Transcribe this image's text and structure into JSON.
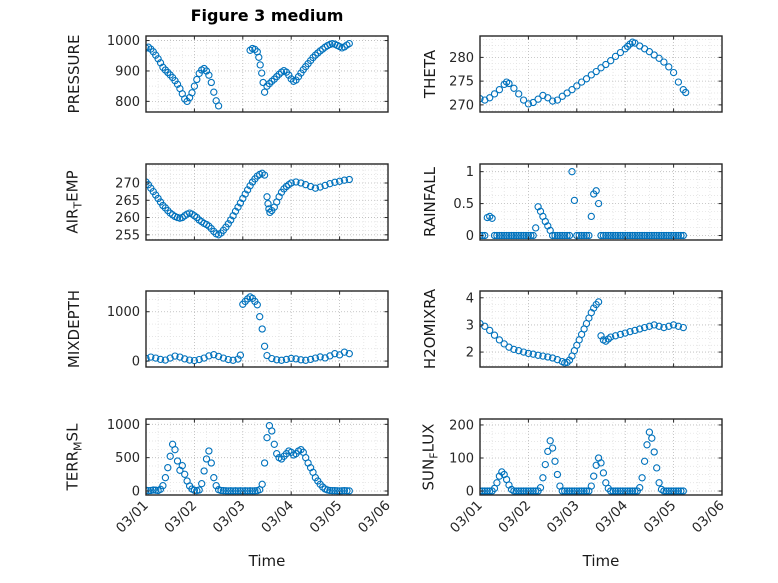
{
  "title": "Figure 3 medium",
  "xlabel": "Time",
  "x_tick_labels": [
    "03/01",
    "03/02",
    "03/03",
    "03/04",
    "03/05",
    "03/06"
  ],
  "colors": {
    "marker": "#0072BD",
    "axis": "#262626",
    "grid_major": "#b8b8b8",
    "grid_minor": "#dedede",
    "plot_bg": "#ffffff"
  },
  "axes": {
    "xlim": [
      0,
      5
    ],
    "xticks": [
      0,
      1,
      2,
      3,
      4,
      5
    ],
    "x_minor_step": 0.25
  },
  "chart_data": [
    {
      "type": "scatter",
      "name": "pressure",
      "row": 0,
      "col": 0,
      "ylabel": {
        "pre": "PRESSURE",
        "sub": "",
        "post": ""
      },
      "yticks": [
        800,
        900,
        1000
      ],
      "ylim": [
        765,
        1015
      ],
      "yminor": 25,
      "x": [
        0,
        0.05,
        0.1,
        0.15,
        0.2,
        0.25,
        0.3,
        0.35,
        0.4,
        0.45,
        0.5,
        0.55,
        0.6,
        0.65,
        0.7,
        0.75,
        0.8,
        0.85,
        0.9,
        0.95,
        1,
        1.05,
        1.1,
        1.15,
        1.2,
        1.25,
        1.3,
        1.35,
        1.4,
        1.45,
        1.5,
        2.15,
        2.2,
        2.25,
        2.3,
        2.33,
        2.36,
        2.39,
        2.42,
        2.45,
        2.5,
        2.55,
        2.6,
        2.65,
        2.7,
        2.75,
        2.8,
        2.85,
        2.9,
        2.95,
        3,
        3.05,
        3.1,
        3.15,
        3.2,
        3.25,
        3.3,
        3.35,
        3.4,
        3.45,
        3.5,
        3.55,
        3.6,
        3.65,
        3.7,
        3.75,
        3.8,
        3.85,
        3.9,
        3.95,
        4,
        4.05,
        4.1,
        4.15,
        4.2
      ],
      "y": [
        975,
        978,
        972,
        963,
        952,
        940,
        927,
        912,
        903,
        895,
        887,
        878,
        868,
        856,
        842,
        825,
        808,
        800,
        812,
        828,
        850,
        872,
        892,
        903,
        908,
        900,
        886,
        862,
        830,
        802,
        785,
        968,
        974,
        971,
        963,
        945,
        920,
        893,
        862,
        830,
        850,
        858,
        866,
        873,
        881,
        889,
        896,
        901,
        896,
        886,
        874,
        866,
        870,
        881,
        893,
        904,
        914,
        924,
        934,
        944,
        952,
        959,
        966,
        972,
        978,
        983,
        987,
        990,
        988,
        984,
        980,
        976,
        979,
        985,
        990
      ]
    },
    {
      "type": "scatter",
      "name": "theta",
      "row": 0,
      "col": 1,
      "ylabel": {
        "pre": "THETA",
        "sub": "",
        "post": ""
      },
      "yticks": [
        270,
        275,
        280
      ],
      "ylim": [
        268.5,
        284.5
      ],
      "yminor": 1.25,
      "x": [
        0,
        0.1,
        0.2,
        0.3,
        0.4,
        0.5,
        0.55,
        0.6,
        0.7,
        0.8,
        0.9,
        1,
        1.1,
        1.2,
        1.3,
        1.4,
        1.5,
        1.6,
        1.7,
        1.8,
        1.9,
        2,
        2.1,
        2.2,
        2.3,
        2.4,
        2.5,
        2.6,
        2.7,
        2.8,
        2.9,
        3,
        3.05,
        3.1,
        3.15,
        3.2,
        3.3,
        3.4,
        3.5,
        3.6,
        3.7,
        3.8,
        3.9,
        4,
        4.1,
        4.2,
        4.25
      ],
      "y": [
        271.3,
        271,
        271.5,
        272.3,
        273.2,
        274.3,
        274.8,
        274.5,
        273.5,
        272.3,
        271,
        270.2,
        270.5,
        271.2,
        272,
        271.5,
        270.8,
        271,
        271.8,
        272.5,
        273.2,
        274,
        274.8,
        275.5,
        276.3,
        277,
        277.8,
        278.5,
        279.3,
        280.2,
        281,
        281.8,
        282.3,
        282.8,
        283.2,
        283,
        282.4,
        281.8,
        281.2,
        280.5,
        279.8,
        279,
        278,
        276.8,
        274.8,
        273.2,
        272.6
      ]
    },
    {
      "type": "scatter",
      "name": "air_temp",
      "row": 1,
      "col": 0,
      "ylabel": {
        "pre": "AIR",
        "sub": "T",
        "post": "EMP"
      },
      "yticks": [
        255,
        260,
        265,
        270
      ],
      "ylim": [
        253.5,
        275.5
      ],
      "yminor": 1.25,
      "x": [
        0,
        0.05,
        0.1,
        0.15,
        0.2,
        0.25,
        0.3,
        0.35,
        0.4,
        0.45,
        0.5,
        0.55,
        0.6,
        0.65,
        0.7,
        0.75,
        0.8,
        0.85,
        0.9,
        0.95,
        1,
        1.05,
        1.1,
        1.15,
        1.2,
        1.25,
        1.3,
        1.35,
        1.4,
        1.45,
        1.5,
        1.55,
        1.6,
        1.65,
        1.7,
        1.75,
        1.8,
        1.85,
        1.9,
        1.95,
        2,
        2.05,
        2.1,
        2.15,
        2.2,
        2.25,
        2.3,
        2.35,
        2.4,
        2.45,
        2.5,
        2.52,
        2.54,
        2.56,
        2.6,
        2.65,
        2.7,
        2.75,
        2.8,
        2.85,
        2.9,
        2.95,
        3,
        3.1,
        3.2,
        3.3,
        3.4,
        3.5,
        3.6,
        3.7,
        3.8,
        3.9,
        4,
        4.1,
        4.2
      ],
      "y": [
        270.3,
        269.5,
        268.5,
        267.5,
        266.5,
        265.5,
        264.5,
        263.5,
        262.8,
        262,
        261.3,
        260.8,
        260.3,
        260,
        259.8,
        260,
        260.5,
        261,
        261.3,
        261,
        260.5,
        260,
        259.3,
        258.8,
        258.3,
        258,
        257.5,
        256.8,
        256,
        255.3,
        255,
        255.5,
        256.3,
        257.2,
        258.2,
        259.3,
        260.5,
        261.8,
        263,
        264.2,
        265.5,
        266.8,
        268,
        269.2,
        270.3,
        271.2,
        272,
        272.5,
        272.8,
        272.3,
        266,
        264,
        262.5,
        261.5,
        262,
        263,
        264.5,
        266,
        267.3,
        268.3,
        269,
        269.5,
        270,
        270.3,
        270,
        269.5,
        269,
        268.5,
        268.8,
        269.3,
        269.8,
        270.2,
        270.5,
        270.8,
        271
      ]
    },
    {
      "type": "scatter",
      "name": "rainfall",
      "row": 1,
      "col": 1,
      "ylabel": {
        "pre": "RAINFALL",
        "sub": "",
        "post": ""
      },
      "yticks": [
        0,
        0.5,
        1
      ],
      "ylim": [
        -0.07,
        1.12
      ],
      "yminor": 0.125,
      "x": [
        0,
        0.05,
        0.1,
        0.15,
        0.2,
        0.25,
        0.3,
        0.35,
        0.4,
        0.45,
        0.5,
        0.55,
        0.6,
        0.65,
        0.7,
        0.75,
        0.8,
        0.85,
        0.9,
        0.95,
        1,
        1.05,
        1.1,
        1.15,
        1.2,
        1.25,
        1.3,
        1.35,
        1.4,
        1.45,
        1.5,
        1.55,
        1.6,
        1.65,
        1.7,
        1.75,
        1.8,
        1.85,
        1.9,
        1.95,
        2,
        2.05,
        2.1,
        2.15,
        2.2,
        2.25,
        2.3,
        2.35,
        2.4,
        2.45,
        2.5,
        2.55,
        2.6,
        2.65,
        2.7,
        2.75,
        2.8,
        2.85,
        2.9,
        2.95,
        3,
        3.05,
        3.1,
        3.15,
        3.2,
        3.25,
        3.3,
        3.35,
        3.4,
        3.45,
        3.5,
        3.55,
        3.6,
        3.65,
        3.7,
        3.75,
        3.8,
        3.85,
        3.9,
        3.95,
        4,
        4.05,
        4.1,
        4.15,
        4.2
      ],
      "y": [
        0,
        0,
        0,
        0.28,
        0.3,
        0.27,
        0,
        0,
        0,
        0,
        0,
        0,
        0,
        0,
        0,
        0,
        0,
        0,
        0,
        0,
        0,
        0,
        0,
        0.12,
        0.45,
        0.38,
        0.3,
        0.22,
        0.15,
        0.08,
        0,
        0,
        0,
        0,
        0,
        0,
        0,
        0,
        1,
        0.55,
        0,
        0,
        0,
        0,
        0,
        0,
        0.3,
        0.65,
        0.7,
        0.5,
        0,
        0,
        0,
        0,
        0,
        0,
        0,
        0,
        0,
        0,
        0,
        0,
        0,
        0,
        0,
        0,
        0,
        0,
        0,
        0,
        0,
        0,
        0,
        0,
        0,
        0,
        0,
        0,
        0,
        0,
        0,
        0,
        0,
        0,
        0
      ]
    },
    {
      "type": "scatter",
      "name": "mixdepth",
      "row": 2,
      "col": 0,
      "ylabel": {
        "pre": "MIXDEPTH",
        "sub": "",
        "post": ""
      },
      "yticks": [
        0,
        1000
      ],
      "ylim": [
        -120,
        1420
      ],
      "yminor": 250,
      "x": [
        0,
        0.1,
        0.2,
        0.3,
        0.4,
        0.5,
        0.6,
        0.7,
        0.8,
        0.9,
        1,
        1.1,
        1.2,
        1.3,
        1.4,
        1.5,
        1.6,
        1.7,
        1.8,
        1.9,
        1.95,
        2,
        2.05,
        2.1,
        2.15,
        2.2,
        2.25,
        2.3,
        2.35,
        2.4,
        2.45,
        2.5,
        2.6,
        2.7,
        2.8,
        2.9,
        3,
        3.1,
        3.2,
        3.3,
        3.4,
        3.5,
        3.6,
        3.7,
        3.8,
        3.9,
        4,
        4.1,
        4.2
      ],
      "y": [
        55,
        80,
        60,
        35,
        20,
        60,
        100,
        80,
        45,
        20,
        10,
        30,
        60,
        105,
        130,
        95,
        60,
        30,
        15,
        40,
        120,
        1150,
        1210,
        1260,
        1300,
        1270,
        1210,
        1140,
        900,
        650,
        300,
        110,
        50,
        25,
        15,
        35,
        55,
        45,
        25,
        15,
        35,
        60,
        85,
        65,
        105,
        150,
        125,
        180,
        150
      ]
    },
    {
      "type": "scatter",
      "name": "h2omixra",
      "row": 2,
      "col": 1,
      "ylabel": {
        "pre": "H2OMIXRA",
        "sub": "",
        "post": ""
      },
      "yticks": [
        2,
        3,
        4
      ],
      "ylim": [
        1.45,
        4.25
      ],
      "yminor": 0.25,
      "x": [
        0,
        0.1,
        0.2,
        0.3,
        0.4,
        0.5,
        0.6,
        0.7,
        0.8,
        0.9,
        1,
        1.1,
        1.2,
        1.3,
        1.4,
        1.5,
        1.6,
        1.7,
        1.75,
        1.8,
        1.85,
        1.9,
        1.95,
        2,
        2.05,
        2.1,
        2.15,
        2.2,
        2.25,
        2.3,
        2.35,
        2.4,
        2.45,
        2.5,
        2.55,
        2.6,
        2.65,
        2.7,
        2.8,
        2.9,
        3,
        3.1,
        3.2,
        3.3,
        3.4,
        3.5,
        3.6,
        3.7,
        3.8,
        3.9,
        4,
        4.1,
        4.2
      ],
      "y": [
        3.05,
        2.95,
        2.8,
        2.62,
        2.45,
        2.3,
        2.18,
        2.1,
        2.05,
        2,
        1.95,
        1.92,
        1.88,
        1.85,
        1.82,
        1.78,
        1.72,
        1.65,
        1.6,
        1.62,
        1.7,
        1.85,
        2.05,
        2.25,
        2.45,
        2.65,
        2.85,
        3.05,
        3.25,
        3.45,
        3.62,
        3.75,
        3.85,
        2.6,
        2.45,
        2.4,
        2.48,
        2.55,
        2.6,
        2.65,
        2.7,
        2.75,
        2.8,
        2.85,
        2.9,
        2.95,
        3,
        2.95,
        2.9,
        2.95,
        3,
        2.95,
        2.9
      ]
    },
    {
      "type": "scatter",
      "name": "terr_msl",
      "row": 3,
      "col": 0,
      "ylabel": {
        "pre": "TERR",
        "sub": "M",
        "post": "SL"
      },
      "yticks": [
        0,
        500,
        1000
      ],
      "ylim": [
        -60,
        1080
      ],
      "yminor": 125,
      "x": [
        0,
        0.05,
        0.1,
        0.15,
        0.2,
        0.25,
        0.3,
        0.35,
        0.4,
        0.45,
        0.5,
        0.55,
        0.6,
        0.65,
        0.7,
        0.75,
        0.8,
        0.85,
        0.9,
        0.95,
        1,
        1.05,
        1.1,
        1.15,
        1.2,
        1.25,
        1.3,
        1.35,
        1.4,
        1.45,
        1.5,
        1.55,
        1.6,
        1.65,
        1.7,
        1.75,
        1.8,
        1.85,
        1.9,
        1.95,
        2,
        2.05,
        2.1,
        2.15,
        2.2,
        2.25,
        2.3,
        2.35,
        2.4,
        2.45,
        2.5,
        2.55,
        2.6,
        2.65,
        2.7,
        2.75,
        2.8,
        2.85,
        2.9,
        2.95,
        3,
        3.05,
        3.1,
        3.15,
        3.2,
        3.25,
        3.3,
        3.35,
        3.4,
        3.45,
        3.5,
        3.55,
        3.6,
        3.65,
        3.7,
        3.75,
        3.8,
        3.85,
        3.9,
        3.95,
        4,
        4.05,
        4.1,
        4.15,
        4.2
      ],
      "y": [
        10,
        5,
        8,
        15,
        12,
        8,
        25,
        80,
        200,
        350,
        520,
        700,
        620,
        450,
        310,
        380,
        250,
        150,
        75,
        30,
        10,
        5,
        15,
        110,
        300,
        480,
        600,
        420,
        200,
        80,
        20,
        8,
        4,
        3,
        2,
        3,
        2,
        3,
        2,
        3,
        2,
        3,
        2,
        3,
        2,
        3,
        5,
        20,
        100,
        420,
        800,
        980,
        900,
        700,
        560,
        500,
        480,
        520,
        560,
        600,
        580,
        540,
        560,
        600,
        620,
        580,
        500,
        420,
        350,
        280,
        200,
        150,
        100,
        60,
        30,
        15,
        8,
        5,
        4,
        3,
        2,
        3,
        4,
        3,
        2
      ]
    },
    {
      "type": "scatter",
      "name": "sun_flux",
      "row": 3,
      "col": 1,
      "ylabel": {
        "pre": "SUN",
        "sub": "F",
        "post": "LUX"
      },
      "yticks": [
        0,
        100,
        200
      ],
      "ylim": [
        -12,
        218
      ],
      "yminor": 25,
      "x": [
        0,
        0.05,
        0.1,
        0.15,
        0.2,
        0.25,
        0.3,
        0.35,
        0.4,
        0.45,
        0.5,
        0.55,
        0.6,
        0.65,
        0.7,
        0.75,
        0.8,
        0.85,
        0.9,
        0.95,
        1,
        1.05,
        1.1,
        1.15,
        1.2,
        1.25,
        1.3,
        1.35,
        1.4,
        1.45,
        1.5,
        1.55,
        1.6,
        1.65,
        1.7,
        1.75,
        1.8,
        1.85,
        1.9,
        1.95,
        2,
        2.05,
        2.1,
        2.15,
        2.2,
        2.25,
        2.3,
        2.35,
        2.4,
        2.45,
        2.5,
        2.55,
        2.6,
        2.65,
        2.7,
        2.75,
        2.8,
        2.85,
        2.9,
        2.95,
        3,
        3.05,
        3.1,
        3.15,
        3.2,
        3.25,
        3.3,
        3.35,
        3.4,
        3.45,
        3.5,
        3.55,
        3.6,
        3.65,
        3.7,
        3.75,
        3.8,
        3.85,
        3.9,
        3.95,
        4,
        4.05,
        4.1,
        4.15,
        4.2
      ],
      "y": [
        0,
        0,
        0,
        0,
        0,
        0,
        8,
        25,
        45,
        58,
        50,
        35,
        18,
        5,
        0,
        0,
        0,
        0,
        0,
        0,
        0,
        0,
        0,
        0,
        0,
        10,
        40,
        80,
        120,
        152,
        130,
        90,
        50,
        15,
        0,
        0,
        0,
        0,
        0,
        0,
        0,
        0,
        0,
        0,
        0,
        0,
        15,
        45,
        78,
        100,
        85,
        55,
        25,
        8,
        0,
        0,
        0,
        0,
        0,
        0,
        0,
        0,
        0,
        0,
        0,
        0,
        10,
        40,
        90,
        140,
        178,
        160,
        118,
        70,
        25,
        5,
        0,
        0,
        0,
        0,
        0,
        0,
        0,
        0,
        0
      ]
    }
  ]
}
